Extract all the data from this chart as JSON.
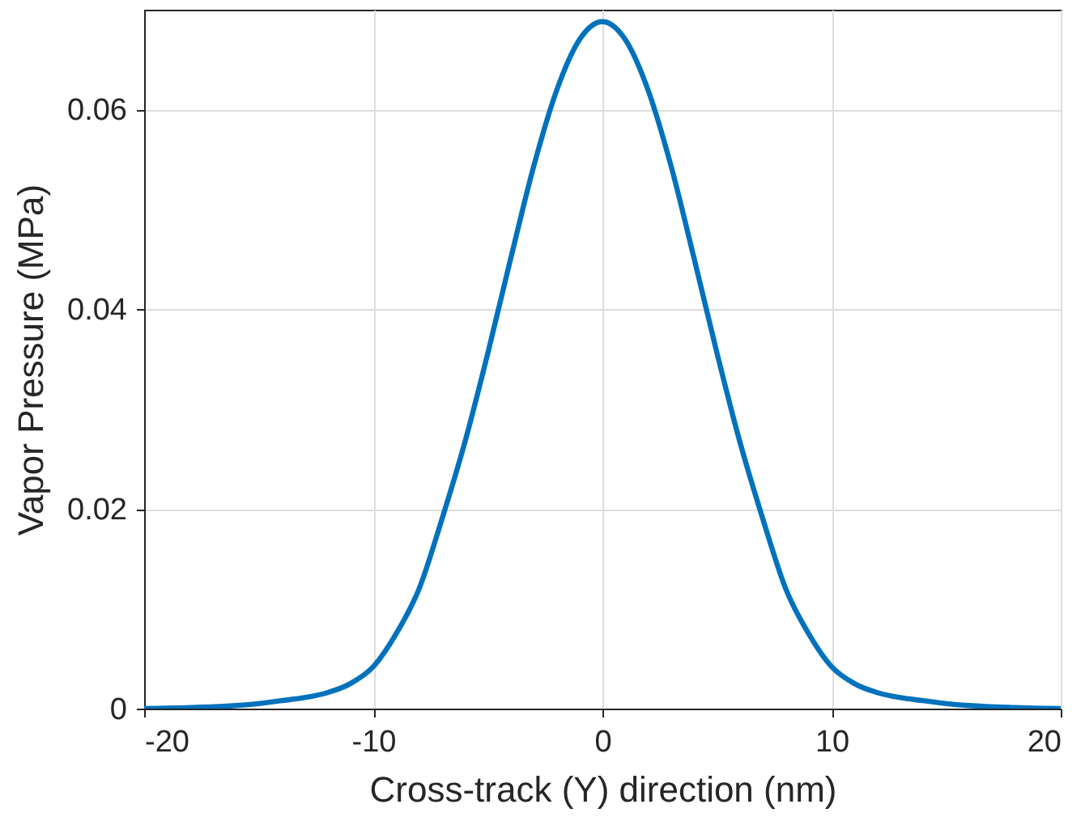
{
  "chart_data": {
    "type": "line",
    "xlabel": "Cross-track (Y) direction (nm)",
    "ylabel": "Vapor Pressure (MPa)",
    "x": [
      -20,
      -18,
      -16,
      -15,
      -14,
      -13,
      -12,
      -11,
      -10,
      -9,
      -8,
      -7,
      -6,
      -5,
      -4,
      -3,
      -2,
      -1,
      0,
      1,
      2,
      3,
      4,
      5,
      6,
      7,
      8,
      9,
      10,
      11,
      12,
      13,
      14,
      15,
      16,
      18,
      20
    ],
    "series": [
      {
        "color": "#0072bd",
        "values": [
          0,
          0.0001,
          0.0003,
          0.0005,
          0.0008,
          0.0011,
          0.0016,
          0.0025,
          0.0042,
          0.0075,
          0.012,
          0.019,
          0.0267,
          0.0356,
          0.0451,
          0.0543,
          0.0619,
          0.067,
          0.0688,
          0.067,
          0.0619,
          0.0543,
          0.0451,
          0.0356,
          0.0267,
          0.019,
          0.012,
          0.0075,
          0.0042,
          0.0025,
          0.0016,
          0.0011,
          0.0008,
          0.0005,
          0.0003,
          0.0001,
          0
        ]
      }
    ],
    "xlim": [
      -20,
      20
    ],
    "xticks": [
      -20,
      -10,
      0,
      10,
      20
    ],
    "ylim": [
      0,
      0.07
    ],
    "yticks": [
      0,
      0.02,
      0.04,
      0.06
    ],
    "grid": true,
    "line_style": "solid",
    "marker": "none"
  }
}
